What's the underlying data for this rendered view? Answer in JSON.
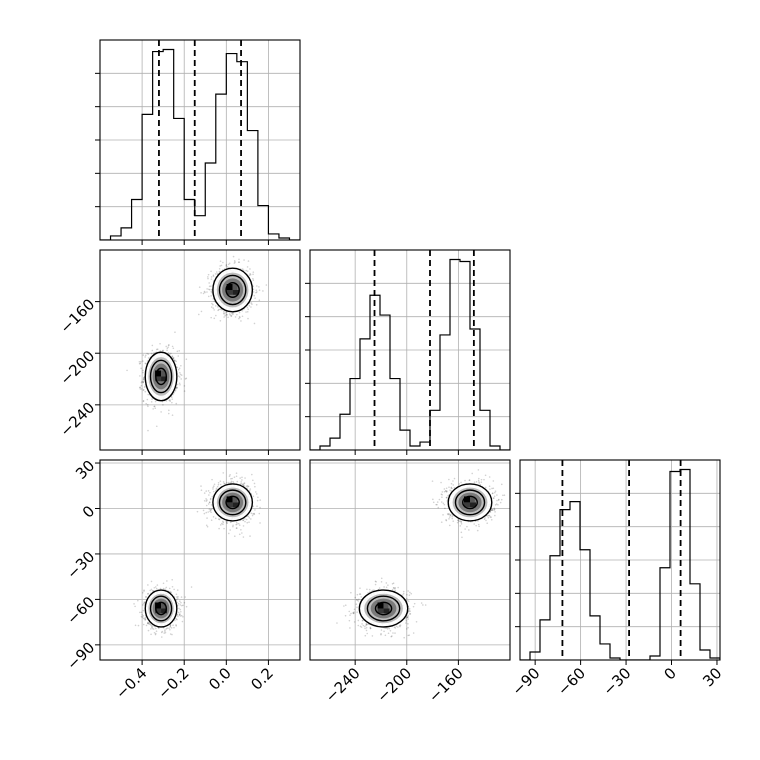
{
  "chart_data": {
    "type": "corner",
    "title": "",
    "parameters": [
      {
        "label": "",
        "range": [
          -0.6,
          0.35
        ],
        "ticks": [
          -0.4,
          -0.2,
          0.0,
          0.2
        ],
        "tick_labels": [
          "−0.4",
          "−0.2",
          "0.0",
          "0.2"
        ],
        "quantile_lines": [
          -0.32,
          -0.15,
          0.07
        ],
        "histogram": {
          "edges": [
            -0.6,
            -0.55,
            -0.5,
            -0.45,
            -0.4,
            -0.35,
            -0.3,
            -0.25,
            -0.2,
            -0.15,
            -0.1,
            -0.05,
            0.0,
            0.05,
            0.1,
            0.15,
            0.2,
            0.25,
            0.3,
            0.35
          ],
          "counts": [
            0,
            0.02,
            0.06,
            0.2,
            0.62,
            0.93,
            0.94,
            0.6,
            0.2,
            0.12,
            0.38,
            0.72,
            0.92,
            0.88,
            0.54,
            0.17,
            0.03,
            0.01,
            0
          ]
        }
      },
      {
        "label": "",
        "range": [
          -275,
          -120
        ],
        "ticks": [
          -240,
          -200,
          -160
        ],
        "tick_labels": [
          "−240",
          "−200",
          "−160"
        ],
        "quantile_lines": [
          -225,
          -182,
          -148
        ],
        "histogram": {
          "edges": [
            -275,
            -267.25,
            -259.5,
            -251.75,
            -244,
            -236.25,
            -228.5,
            -220.75,
            -213,
            -205.25,
            -197.5,
            -189.75,
            -182,
            -174.25,
            -166.5,
            -158.75,
            -151,
            -143.25,
            -135.5,
            -127.75,
            -120
          ],
          "counts": [
            0,
            0.02,
            0.06,
            0.18,
            0.36,
            0.56,
            0.78,
            0.68,
            0.36,
            0.1,
            0.02,
            0.04,
            0.2,
            0.58,
            0.96,
            0.95,
            0.61,
            0.2,
            0.02,
            0
          ]
        }
      },
      {
        "label": "",
        "range": [
          -100,
          32
        ],
        "ticks": [
          -90,
          -60,
          -30,
          0,
          30
        ],
        "tick_labels": [
          "−90",
          "−60",
          "−30",
          "0",
          "30"
        ],
        "quantile_lines": [
          -72,
          -28,
          6
        ],
        "histogram": {
          "edges": [
            -100,
            -93.4,
            -86.8,
            -80.2,
            -73.6,
            -67,
            -60.4,
            -53.8,
            -47.2,
            -40.6,
            -34,
            -27.4,
            -20.8,
            -14.2,
            -7.6,
            -1,
            5.6,
            12.2,
            18.8,
            25.4,
            32
          ],
          "counts": [
            0,
            0.04,
            0.2,
            0.52,
            0.75,
            0.79,
            0.55,
            0.22,
            0.08,
            0.01,
            0,
            0,
            0,
            0.02,
            0.46,
            0.94,
            0.95,
            0.38,
            0.05,
            0.01
          ]
        }
      }
    ],
    "clusters": [
      {
        "means": [
          -0.31,
          -218,
          -66
        ],
        "sd": [
          0.04,
          10,
          6.5
        ],
        "sample_fraction": 0.5
      },
      {
        "means": [
          0.03,
          -151,
          4
        ],
        "sd": [
          0.05,
          9,
          6.5
        ],
        "sample_fraction": 0.5
      }
    ],
    "contour_levels": [
      0.5,
      1.0,
      1.5
    ],
    "colors": {
      "line": "#000000",
      "grid": "#b0b0b0",
      "points": "#000000",
      "density_max": "#000000"
    },
    "grid": true,
    "legend": false
  }
}
